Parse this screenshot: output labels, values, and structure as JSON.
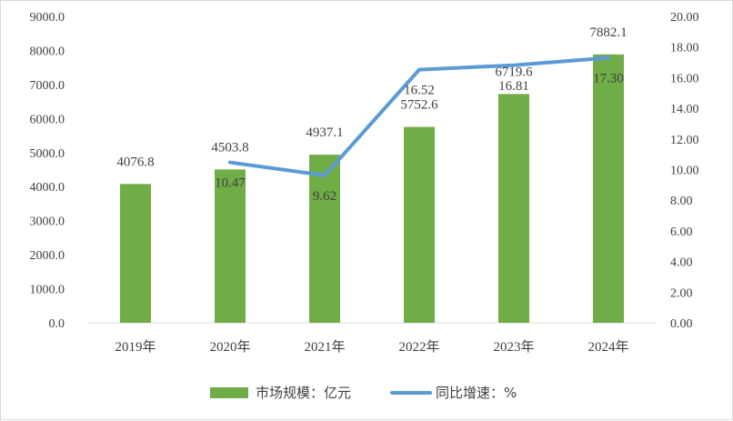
{
  "chart_data": {
    "type": "bar",
    "title": "",
    "categories": [
      "2019年",
      "2020年",
      "2021年",
      "2022年",
      "2023年",
      "2024年"
    ],
    "series": [
      {
        "name": "市场规模：亿元",
        "type": "bar",
        "axis": "left",
        "values": [
          4076.8,
          4503.8,
          4937.1,
          5752.6,
          6719.6,
          7882.1
        ],
        "labels": [
          "4076.8",
          "4503.8",
          "4937.1",
          "5752.6",
          "6719.6",
          "7882.1"
        ],
        "color": "#70ad47"
      },
      {
        "name": "同比增速：%",
        "type": "line",
        "axis": "right",
        "values": [
          null,
          10.47,
          9.62,
          16.52,
          16.81,
          17.3
        ],
        "labels": [
          "",
          "10.47",
          "9.62",
          "16.52",
          "16.81",
          "17.30"
        ],
        "color": "#5b9bd5"
      }
    ],
    "y_left": {
      "ylim": [
        0,
        9000
      ],
      "ticks": [
        "0.0",
        "1000.0",
        "2000.0",
        "3000.0",
        "4000.0",
        "5000.0",
        "6000.0",
        "7000.0",
        "8000.0",
        "9000.0"
      ]
    },
    "y_right": {
      "ylim": [
        0,
        20
      ],
      "ticks": [
        "0.00",
        "2.00",
        "4.00",
        "6.00",
        "8.00",
        "10.00",
        "12.00",
        "14.00",
        "16.00",
        "18.00",
        "20.00"
      ]
    },
    "grid": false,
    "legend_position": "bottom"
  }
}
